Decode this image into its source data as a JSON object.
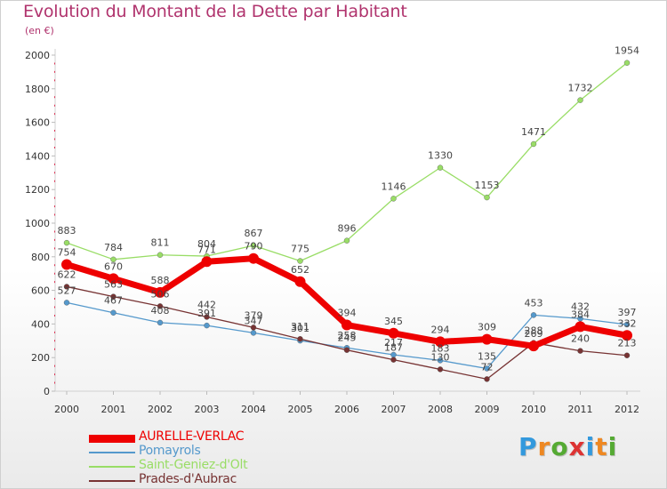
{
  "chart_data": {
    "type": "line",
    "title": "Evolution du Montant de la Dette par Habitant",
    "subtitle": "(en €)",
    "x": [
      "2000",
      "2001",
      "2002",
      "2003",
      "2004",
      "2005",
      "2006",
      "2007",
      "2008",
      "2009",
      "2010",
      "2011",
      "2012"
    ],
    "ylim": [
      0,
      2000
    ],
    "yticks": [
      "0",
      "200",
      "400",
      "600",
      "800",
      "1000",
      "1200",
      "1400",
      "1600",
      "1800",
      "2000"
    ],
    "series": [
      {
        "name": "Saint-Geniez-d'Olt",
        "color": "#99dd66",
        "values": [
          883,
          784,
          811,
          804,
          867,
          775,
          896,
          1146,
          1330,
          1153,
          1471,
          1732,
          1954
        ],
        "labels": [
          "883",
          "784",
          "811",
          "804",
          "867",
          "775",
          "896",
          "1146",
          "1330",
          "1153",
          "1471",
          "1732",
          "1954"
        ]
      },
      {
        "name": "Pomayrols",
        "color": "#5599cc",
        "values": [
          527,
          467,
          408,
          391,
          347,
          301,
          258,
          217,
          183,
          135,
          453,
          432,
          397
        ],
        "labels": [
          "527",
          "467",
          "408",
          "391",
          "347",
          "301",
          "258",
          "217",
          "183",
          "135",
          "453",
          "432",
          "397"
        ]
      },
      {
        "name": "Prades-d'Aubrac",
        "color": "#773333",
        "values": [
          622,
          563,
          506,
          442,
          379,
          311,
          245,
          187,
          130,
          72,
          288,
          240,
          213
        ],
        "labels": [
          "622",
          "563",
          "506",
          "442",
          "379",
          "311",
          "245",
          "187",
          "130",
          "72",
          "288",
          "240",
          "213"
        ]
      },
      {
        "name": "AURELLE-VERLAC",
        "color": "#ee0000",
        "values": [
          754,
          670,
          588,
          771,
          790,
          652,
          394,
          345,
          294,
          309,
          269,
          384,
          332
        ],
        "labels": [
          "754",
          "670",
          "588",
          "771",
          "790",
          "652",
          "394",
          "345",
          "294",
          "309",
          "269",
          "384",
          "332"
        ]
      }
    ],
    "legend": [
      "AURELLE-VERLAC",
      "Pomayrols",
      "Saint-Geniez-d'Olt",
      "Prades-d'Aubrac"
    ],
    "legend_position": "bottom-left",
    "grid": false
  },
  "logo": {
    "letters": [
      "P",
      "r",
      "o",
      "x",
      "i",
      "t",
      "i"
    ],
    "colors": [
      "#3399dd",
      "#ee8822",
      "#55aa33",
      "#dd3333",
      "#3399dd",
      "#ee8822",
      "#55aa33"
    ]
  }
}
